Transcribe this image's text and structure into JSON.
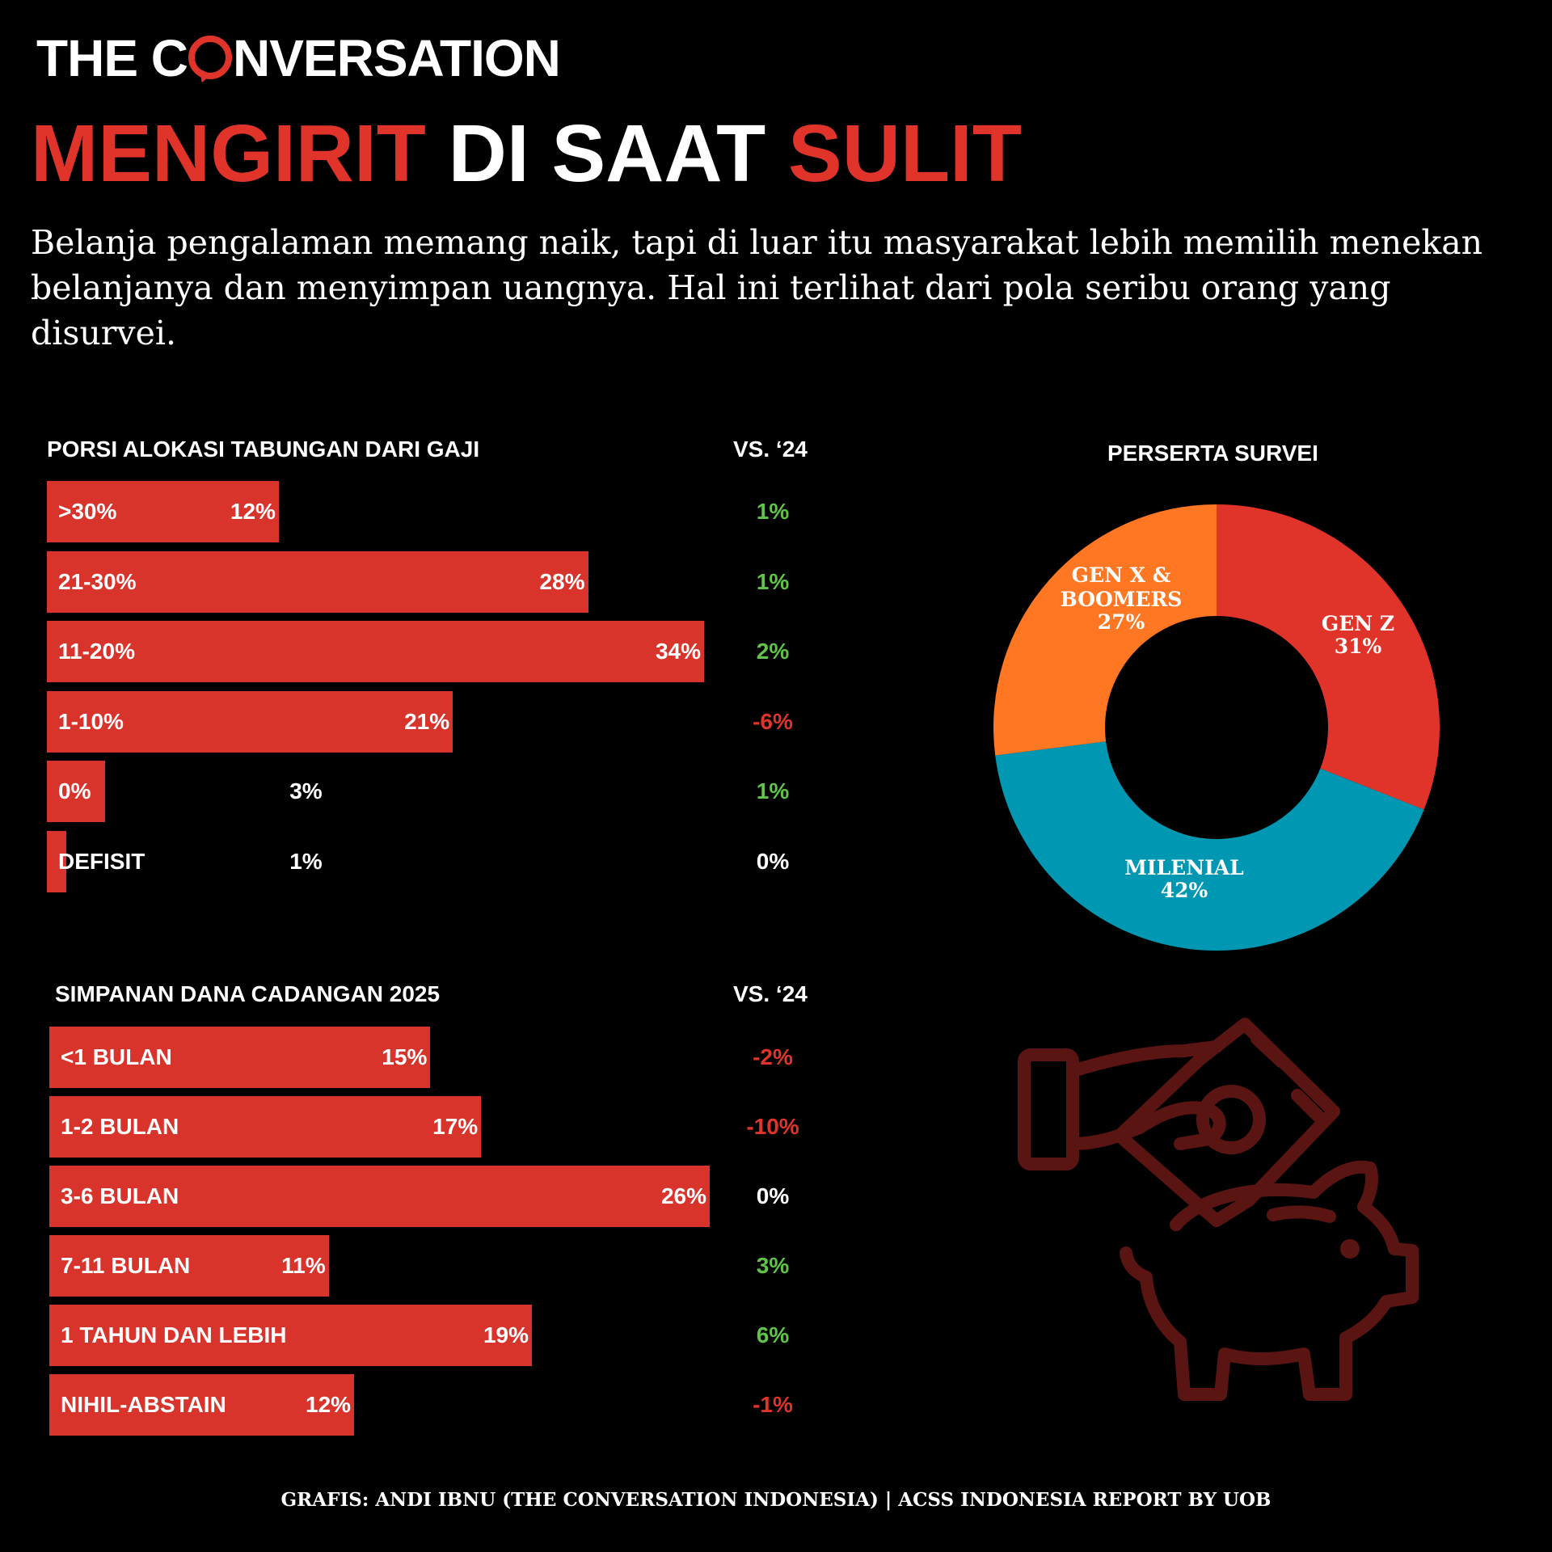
{
  "brand": {
    "logo_before": "THE C",
    "logo_after": "NVERSATION",
    "accent": "#e0342a"
  },
  "headline": {
    "part1": "MENGIRIT",
    "part2": "DI SAAT",
    "part3": "SULIT"
  },
  "subtitle": "Belanja pengalaman memang naik, tapi di luar itu masyarakat lebih memilih menekan belanjanya dan menyimpan uangnya. Hal ini terlihat dari pola seribu orang yang disurvei.",
  "credit": "GRAFIS: ANDI IBNU (THE CONVERSATION INDONESIA) | ACSS INDONESIA REPORT BY UOB",
  "colors": {
    "bar": "#d9342b",
    "positive": "#5fc447",
    "negative": "#e0342a",
    "genz": "#e0342a",
    "milenial": "#0097b2",
    "genx": "#ff7722"
  },
  "chart_data": [
    {
      "type": "bar",
      "orientation": "horizontal",
      "title": "PORSI ALOKASI TABUNGAN DARI GAJI",
      "change_header": "VS. ‘24",
      "categories": [
        ">30%",
        "21-30%",
        "11-20%",
        "1-10%",
        "0%",
        "DEFISIT"
      ],
      "values": [
        12,
        28,
        34,
        21,
        3,
        1
      ],
      "value_labels": [
        "12%",
        "28%",
        "34%",
        "21%",
        "3%",
        "1%"
      ],
      "changes": [
        "1%",
        "1%",
        "2%",
        "-6%",
        "1%",
        "0%"
      ],
      "change_sign": [
        1,
        1,
        1,
        -1,
        1,
        0
      ],
      "xlim": [
        0,
        34
      ]
    },
    {
      "type": "bar",
      "orientation": "horizontal",
      "title": "SIMPANAN DANA CADANGAN 2025",
      "change_header": "VS. ‘24",
      "categories": [
        "<1 BULAN",
        "1-2 BULAN",
        "3-6 BULAN",
        "7-11 BULAN",
        "1 TAHUN DAN LEBIH",
        "NIHIL-ABSTAIN"
      ],
      "values": [
        15,
        17,
        26,
        11,
        19,
        12
      ],
      "value_labels": [
        "15%",
        "17%",
        "26%",
        "11%",
        "19%",
        "12%"
      ],
      "changes": [
        "-2%",
        "-10%",
        "0%",
        "3%",
        "6%",
        "-1%"
      ],
      "change_sign": [
        -1,
        -1,
        0,
        1,
        1,
        -1
      ],
      "xlim": [
        0,
        26
      ]
    },
    {
      "type": "pie",
      "style": "donut",
      "title": "PERSERTA SURVEI",
      "slices": [
        {
          "name": "GEN Z",
          "value": 31,
          "label": "31%"
        },
        {
          "name": "MILENIAL",
          "value": 42,
          "label": "42%"
        },
        {
          "name": "GEN X & BOOMERS",
          "name_line1": "GEN X &",
          "name_line2": "BOOMERS",
          "value": 27,
          "label": "27%"
        }
      ]
    }
  ],
  "icons": [
    "hand-money-piggy-bank-icon"
  ]
}
